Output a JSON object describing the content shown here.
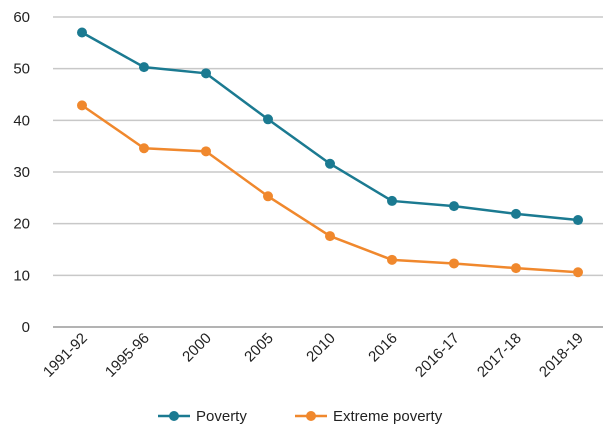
{
  "chart_data": {
    "type": "line",
    "categories": [
      "1991-92",
      "1995-96",
      "2000",
      "2005",
      "2010",
      "2016",
      "2016-17",
      "2017-18",
      "2018-19"
    ],
    "series": [
      {
        "name": "Poverty",
        "color": "#1b7a91",
        "values": [
          57.0,
          50.3,
          49.1,
          40.2,
          31.6,
          24.4,
          23.4,
          21.9,
          20.7
        ]
      },
      {
        "name": "Extreme poverty",
        "color": "#f0882d",
        "values": [
          42.9,
          34.6,
          34.0,
          25.3,
          17.6,
          13.0,
          12.3,
          11.4,
          10.6
        ]
      }
    ],
    "title": "",
    "xlabel": "",
    "ylabel": "",
    "ylim": [
      0,
      60
    ],
    "yticks": [
      0,
      10,
      20,
      30,
      40,
      50,
      60
    ],
    "grid": true,
    "legend_position": "bottom"
  }
}
